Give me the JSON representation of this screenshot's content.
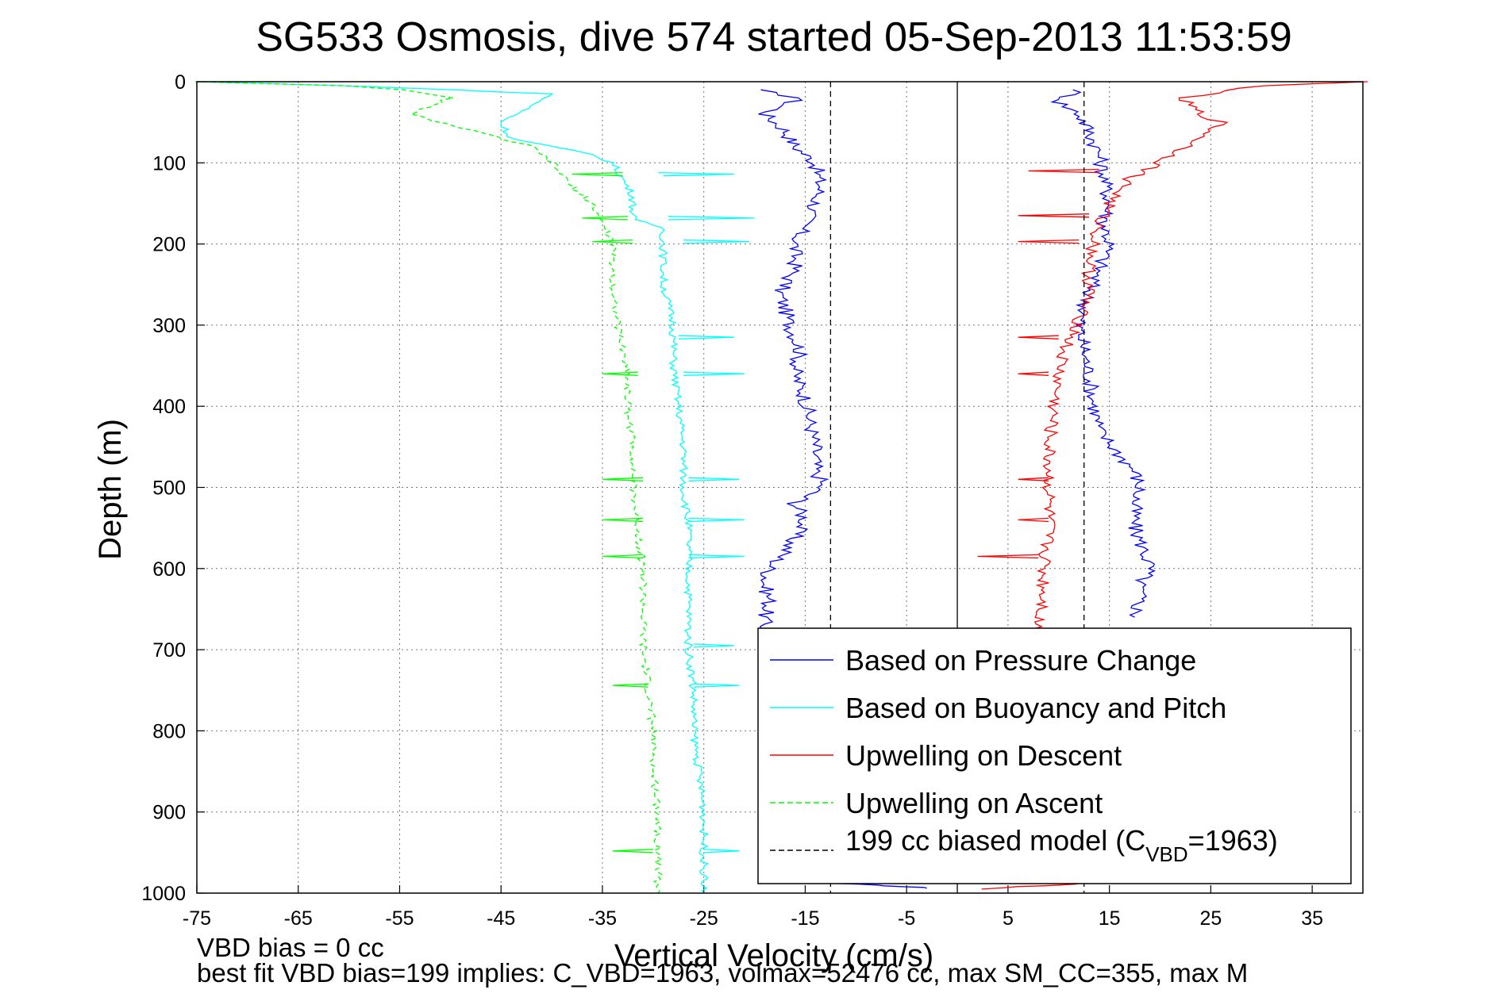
{
  "chart_data": {
    "type": "line",
    "title": "SG533 Osmosis, dive 574 started 05-Sep-2013 11:53:59",
    "xlabel": "Vertical Velocity (cm/s)",
    "ylabel": "Depth (m)",
    "xlim": [
      -75,
      40
    ],
    "ylim": [
      0,
      1000
    ],
    "y_reversed": true,
    "grid": true,
    "x_ticks": [
      -75,
      -65,
      -55,
      -45,
      -35,
      -25,
      -15,
      -5,
      5,
      15,
      25,
      35
    ],
    "x_tick_labels": [
      "-75",
      "-65",
      "-55",
      "-45",
      "-35",
      "-25",
      "-15",
      "-5",
      "5",
      "15",
      "25",
      "35"
    ],
    "y_ticks": [
      0,
      100,
      200,
      300,
      400,
      500,
      600,
      700,
      800,
      900,
      1000
    ],
    "y_tick_labels": [
      "0",
      "100",
      "200",
      "300",
      "400",
      "500",
      "600",
      "700",
      "800",
      "900",
      "1000"
    ],
    "legend_position": "bottom-right",
    "legend": [
      {
        "label": "Based on Pressure Change",
        "color": "#0000ff",
        "dash": "solid"
      },
      {
        "label": "Based on Buoyancy and Pitch",
        "color": "#00ffff",
        "dash": "solid"
      },
      {
        "label": "Upwelling on Descent",
        "color": "#ff0000",
        "dash": "solid"
      },
      {
        "label": "Upwelling on Ascent",
        "color": "#00ff00",
        "dash": "dashed"
      },
      {
        "label_main": "199 cc biased model (C",
        "label_sub": "VBD",
        "label_tail": "=1963)",
        "color": "#000000",
        "dash": "dashed"
      }
    ],
    "series": [
      {
        "color": "#0000ff",
        "dash": "solid",
        "x": [
          -20,
          -15.5,
          -19,
          -17,
          -16,
          -14,
          -13.5,
          -14,
          -15,
          -16,
          -16,
          -17.5,
          -16.5,
          -15.5,
          -16,
          -15,
          -14.5,
          -14,
          -14,
          -13.5,
          -13.5,
          -16,
          -15,
          -16,
          -17,
          -18.5,
          -19,
          -18.5,
          -19,
          -19
        ],
        "y": [
          10,
          20,
          40,
          60,
          80,
          100,
          130,
          150,
          175,
          200,
          230,
          260,
          300,
          330,
          360,
          390,
          420,
          450,
          480,
          490,
          500,
          520,
          540,
          560,
          580,
          600,
          620,
          640,
          660,
          680
        ]
      },
      {
        "color": "#0000ff",
        "dash": "solid",
        "x": [
          12,
          10,
          12,
          13,
          14,
          14.5,
          15,
          14.5,
          15,
          14,
          13,
          12,
          12.5,
          13,
          13.5,
          14,
          16,
          17.5,
          18,
          17.5,
          17.5,
          18.5,
          19,
          18,
          18,
          17.5
        ],
        "y": [
          10,
          25,
          40,
          60,
          90,
          120,
          150,
          175,
          200,
          230,
          260,
          300,
          330,
          360,
          400,
          430,
          460,
          480,
          500,
          520,
          550,
          580,
          600,
          620,
          640,
          660
        ]
      },
      {
        "color": "#0000ff",
        "dash": "solid",
        "x": [
          -18,
          -12,
          -8,
          -5,
          -3
        ],
        "y": [
          985,
          988,
          990,
          992,
          994
        ]
      },
      {
        "color": "#00ffff",
        "dash": "solid",
        "x": [
          -75,
          -60,
          -50,
          -40,
          -42,
          -45,
          -44,
          -36,
          -34,
          -33,
          -32,
          -32,
          -32,
          -29,
          -29,
          -29,
          -28,
          -28,
          -27.5,
          -27,
          -27,
          -26.5,
          -26.5,
          -26.5,
          -26.5,
          -26,
          -26,
          -25.5,
          -25,
          -25
        ],
        "y": [
          0,
          5,
          10,
          15,
          30,
          50,
          70,
          90,
          100,
          120,
          140,
          160,
          170,
          180,
          200,
          250,
          300,
          350,
          400,
          450,
          500,
          550,
          600,
          650,
          700,
          750,
          800,
          850,
          900,
          1000
        ]
      },
      {
        "color": "#ff0000",
        "dash": "solid",
        "x": [
          40,
          30,
          22,
          24,
          26,
          24,
          20,
          17,
          15,
          14,
          13.5,
          13,
          13,
          12,
          12,
          10.5,
          10,
          9.5,
          9,
          9,
          9,
          8.5,
          8.5,
          8,
          8
        ],
        "y": [
          0,
          5,
          20,
          40,
          50,
          70,
          100,
          120,
          150,
          175,
          200,
          230,
          260,
          290,
          300,
          330,
          360,
          400,
          450,
          500,
          550,
          600,
          650,
          660,
          680
        ]
      },
      {
        "color": "#ff0000",
        "dash": "solid",
        "x": [
          3,
          6,
          10,
          12
        ],
        "y": [
          995,
          992,
          990,
          988
        ]
      },
      {
        "color": "#00ff00",
        "dash": "dashed",
        "x": [
          -75,
          -60,
          -55,
          -50,
          -54,
          -48,
          -42,
          -40,
          -38,
          -36,
          -35,
          -34,
          -34,
          -33.5,
          -33,
          -32.5,
          -32.5,
          -32,
          -32,
          -31.5,
          -31,
          -31,
          -31,
          -30.5,
          -30,
          -30,
          -29.5,
          -29.5,
          -29.5,
          -29.5
        ],
        "y": [
          0,
          5,
          10,
          20,
          40,
          60,
          80,
          100,
          130,
          150,
          175,
          200,
          250,
          300,
          330,
          360,
          400,
          450,
          500,
          550,
          600,
          650,
          700,
          750,
          800,
          850,
          900,
          950,
          980,
          1000
        ]
      }
    ],
    "spikes": [
      {
        "color": "#00ffff",
        "x": [
          -29.5,
          -22,
          -29
        ],
        "y": [
          112,
          114,
          116
        ]
      },
      {
        "color": "#00ffff",
        "x": [
          -28.5,
          -20,
          -28.5
        ],
        "y": [
          166,
          168,
          170
        ]
      },
      {
        "color": "#00ffff",
        "x": [
          -27,
          -20.5,
          -27
        ],
        "y": [
          195,
          197,
          199
        ]
      },
      {
        "color": "#00ffff",
        "x": [
          -27.5,
          -22,
          -27.5
        ],
        "y": [
          313,
          315,
          317
        ]
      },
      {
        "color": "#00ffff",
        "x": [
          -27,
          -21,
          -27
        ],
        "y": [
          358,
          360,
          362
        ]
      },
      {
        "color": "#00ffff",
        "x": [
          -26.5,
          -21.5,
          -26.5
        ],
        "y": [
          488,
          490,
          492
        ]
      },
      {
        "color": "#00ffff",
        "x": [
          -26.5,
          -21,
          -26.5
        ],
        "y": [
          538,
          540,
          542
        ]
      },
      {
        "color": "#00ffff",
        "x": [
          -26.5,
          -21,
          -26.5
        ],
        "y": [
          583,
          585,
          587
        ]
      },
      {
        "color": "#00ffff",
        "x": [
          -26,
          -22,
          -26
        ],
        "y": [
          693,
          695,
          697
        ]
      },
      {
        "color": "#00ffff",
        "x": [
          -26,
          -21.5,
          -26
        ],
        "y": [
          742,
          744,
          746
        ]
      },
      {
        "color": "#00ffff",
        "x": [
          -25,
          -21.5,
          -25
        ],
        "y": [
          946,
          948,
          950
        ]
      },
      {
        "color": "#ff0000",
        "x": [
          14,
          7,
          14
        ],
        "y": [
          108,
          110,
          112
        ]
      },
      {
        "color": "#ff0000",
        "x": [
          13,
          6,
          13
        ],
        "y": [
          163,
          165,
          167
        ]
      },
      {
        "color": "#ff0000",
        "x": [
          12,
          6,
          12
        ],
        "y": [
          195,
          197,
          199
        ]
      },
      {
        "color": "#ff0000",
        "x": [
          10,
          6,
          10
        ],
        "y": [
          313,
          315,
          317
        ]
      },
      {
        "color": "#ff0000",
        "x": [
          9,
          6,
          9
        ],
        "y": [
          358,
          360,
          362
        ]
      },
      {
        "color": "#ff0000",
        "x": [
          9,
          6,
          9
        ],
        "y": [
          488,
          490,
          492
        ]
      },
      {
        "color": "#ff0000",
        "x": [
          9,
          6,
          9
        ],
        "y": [
          538,
          540,
          542
        ]
      },
      {
        "color": "#ff0000",
        "x": [
          8,
          2,
          8
        ],
        "y": [
          583,
          585,
          587
        ]
      },
      {
        "color": "#00ff00",
        "x": [
          -33,
          -38,
          -33
        ],
        "y": [
          112,
          114,
          116
        ]
      },
      {
        "color": "#00ff00",
        "x": [
          -32.5,
          -37,
          -32.5
        ],
        "y": [
          166,
          168,
          170
        ]
      },
      {
        "color": "#00ff00",
        "x": [
          -32,
          -36,
          -32
        ],
        "y": [
          195,
          197,
          199
        ]
      },
      {
        "color": "#00ff00",
        "x": [
          -31.5,
          -35,
          -31.5
        ],
        "y": [
          358,
          360,
          362
        ]
      },
      {
        "color": "#00ff00",
        "x": [
          -31,
          -35,
          -31
        ],
        "y": [
          488,
          490,
          492
        ]
      },
      {
        "color": "#00ff00",
        "x": [
          -31,
          -35,
          -31
        ],
        "y": [
          538,
          540,
          542
        ]
      },
      {
        "color": "#00ff00",
        "x": [
          -31,
          -35,
          -31
        ],
        "y": [
          583,
          585,
          587
        ]
      },
      {
        "color": "#00ff00",
        "x": [
          -30.5,
          -34,
          -30.5
        ],
        "y": [
          742,
          744,
          746
        ]
      },
      {
        "color": "#00ff00",
        "x": [
          -30,
          -34,
          -30
        ],
        "y": [
          946,
          948,
          950
        ]
      }
    ],
    "reference_lines": [
      {
        "color": "#000000",
        "dash": "dashed",
        "x": -12.5
      },
      {
        "color": "#000000",
        "dash": "dashed",
        "x": 12.5
      },
      {
        "color": "#000000",
        "dash": "solid",
        "x": 0
      }
    ]
  },
  "footer": {
    "line1": "VBD bias = 0 cc",
    "line2": "best fit VBD bias=199 implies: C_VBD=1963, volmax=52476 cc, max SM_CC=355, max M"
  }
}
